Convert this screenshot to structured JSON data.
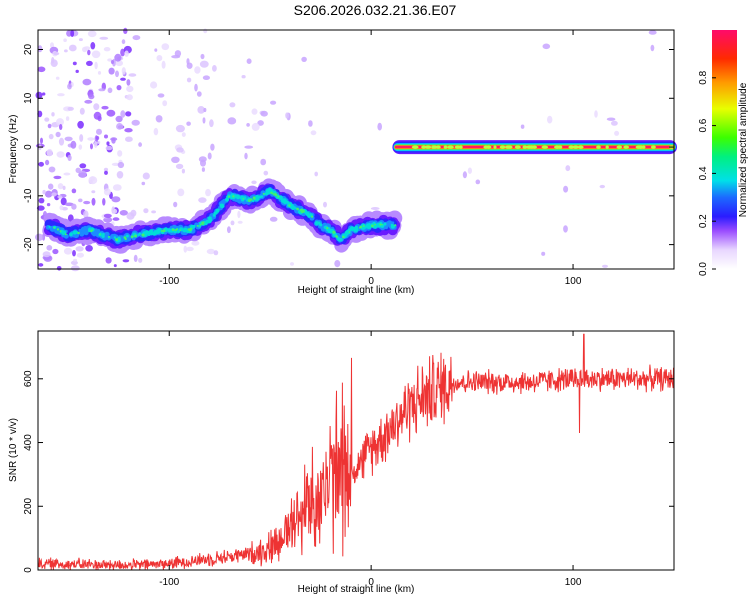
{
  "title": "S206.2026.032.21.36.E07",
  "chart_data": [
    {
      "type": "heatmap",
      "xlabel": "Height of straight line (km)",
      "ylabel": "Frequency (Hz)",
      "xlim": [
        -165,
        150
      ],
      "ylim": [
        -25,
        24
      ],
      "xticks": [
        -100,
        0,
        100
      ],
      "yticks": [
        -20,
        -10,
        0,
        10,
        20
      ],
      "colorbar": {
        "label": "Normalized spectral amplitude",
        "range": [
          0,
          1
        ],
        "ticks": [
          0.0,
          0.2,
          0.4,
          0.6,
          0.8
        ],
        "tick_labels": [
          "0.0",
          "0.2",
          "0.4",
          "0.6",
          "0.8"
        ]
      },
      "traces": [
        {
          "x": [
            -160,
            -150,
            -140,
            -125,
            -115,
            -100,
            -90,
            -80,
            -70,
            -60,
            -50,
            -40,
            -35,
            -30,
            -25,
            -20,
            -15,
            -10,
            0,
            12
          ],
          "y": [
            -16,
            -18,
            -17,
            -19,
            -18,
            -17,
            -17,
            -15,
            -10,
            -11,
            -9,
            -12,
            -13,
            -14,
            -16,
            -17,
            -19,
            -17,
            -16,
            -16
          ],
          "level": 0.35
        },
        {
          "x": [
            12,
            100,
            150
          ],
          "y": [
            0,
            0,
            0
          ],
          "level": 0.95
        }
      ]
    },
    {
      "type": "line",
      "xlabel": "Height of straight line (km)",
      "ylabel": "SNR (10 * v/v)",
      "xlim": [
        -165,
        150
      ],
      "ylim": [
        0,
        750
      ],
      "xticks": [
        -100,
        0,
        100
      ],
      "yticks": [
        0,
        200,
        400,
        600
      ],
      "series_color": "#ee3333",
      "envelope": {
        "x": [
          -165,
          -120,
          -100,
          -80,
          -60,
          -50,
          -40,
          -30,
          -20,
          -10,
          0,
          10,
          20,
          30,
          40,
          60,
          80,
          100,
          120,
          150
        ],
        "y": [
          20,
          15,
          20,
          35,
          50,
          70,
          130,
          220,
          270,
          300,
          380,
          450,
          520,
          560,
          590,
          590,
          590,
          600,
          600,
          600
        ]
      }
    }
  ]
}
